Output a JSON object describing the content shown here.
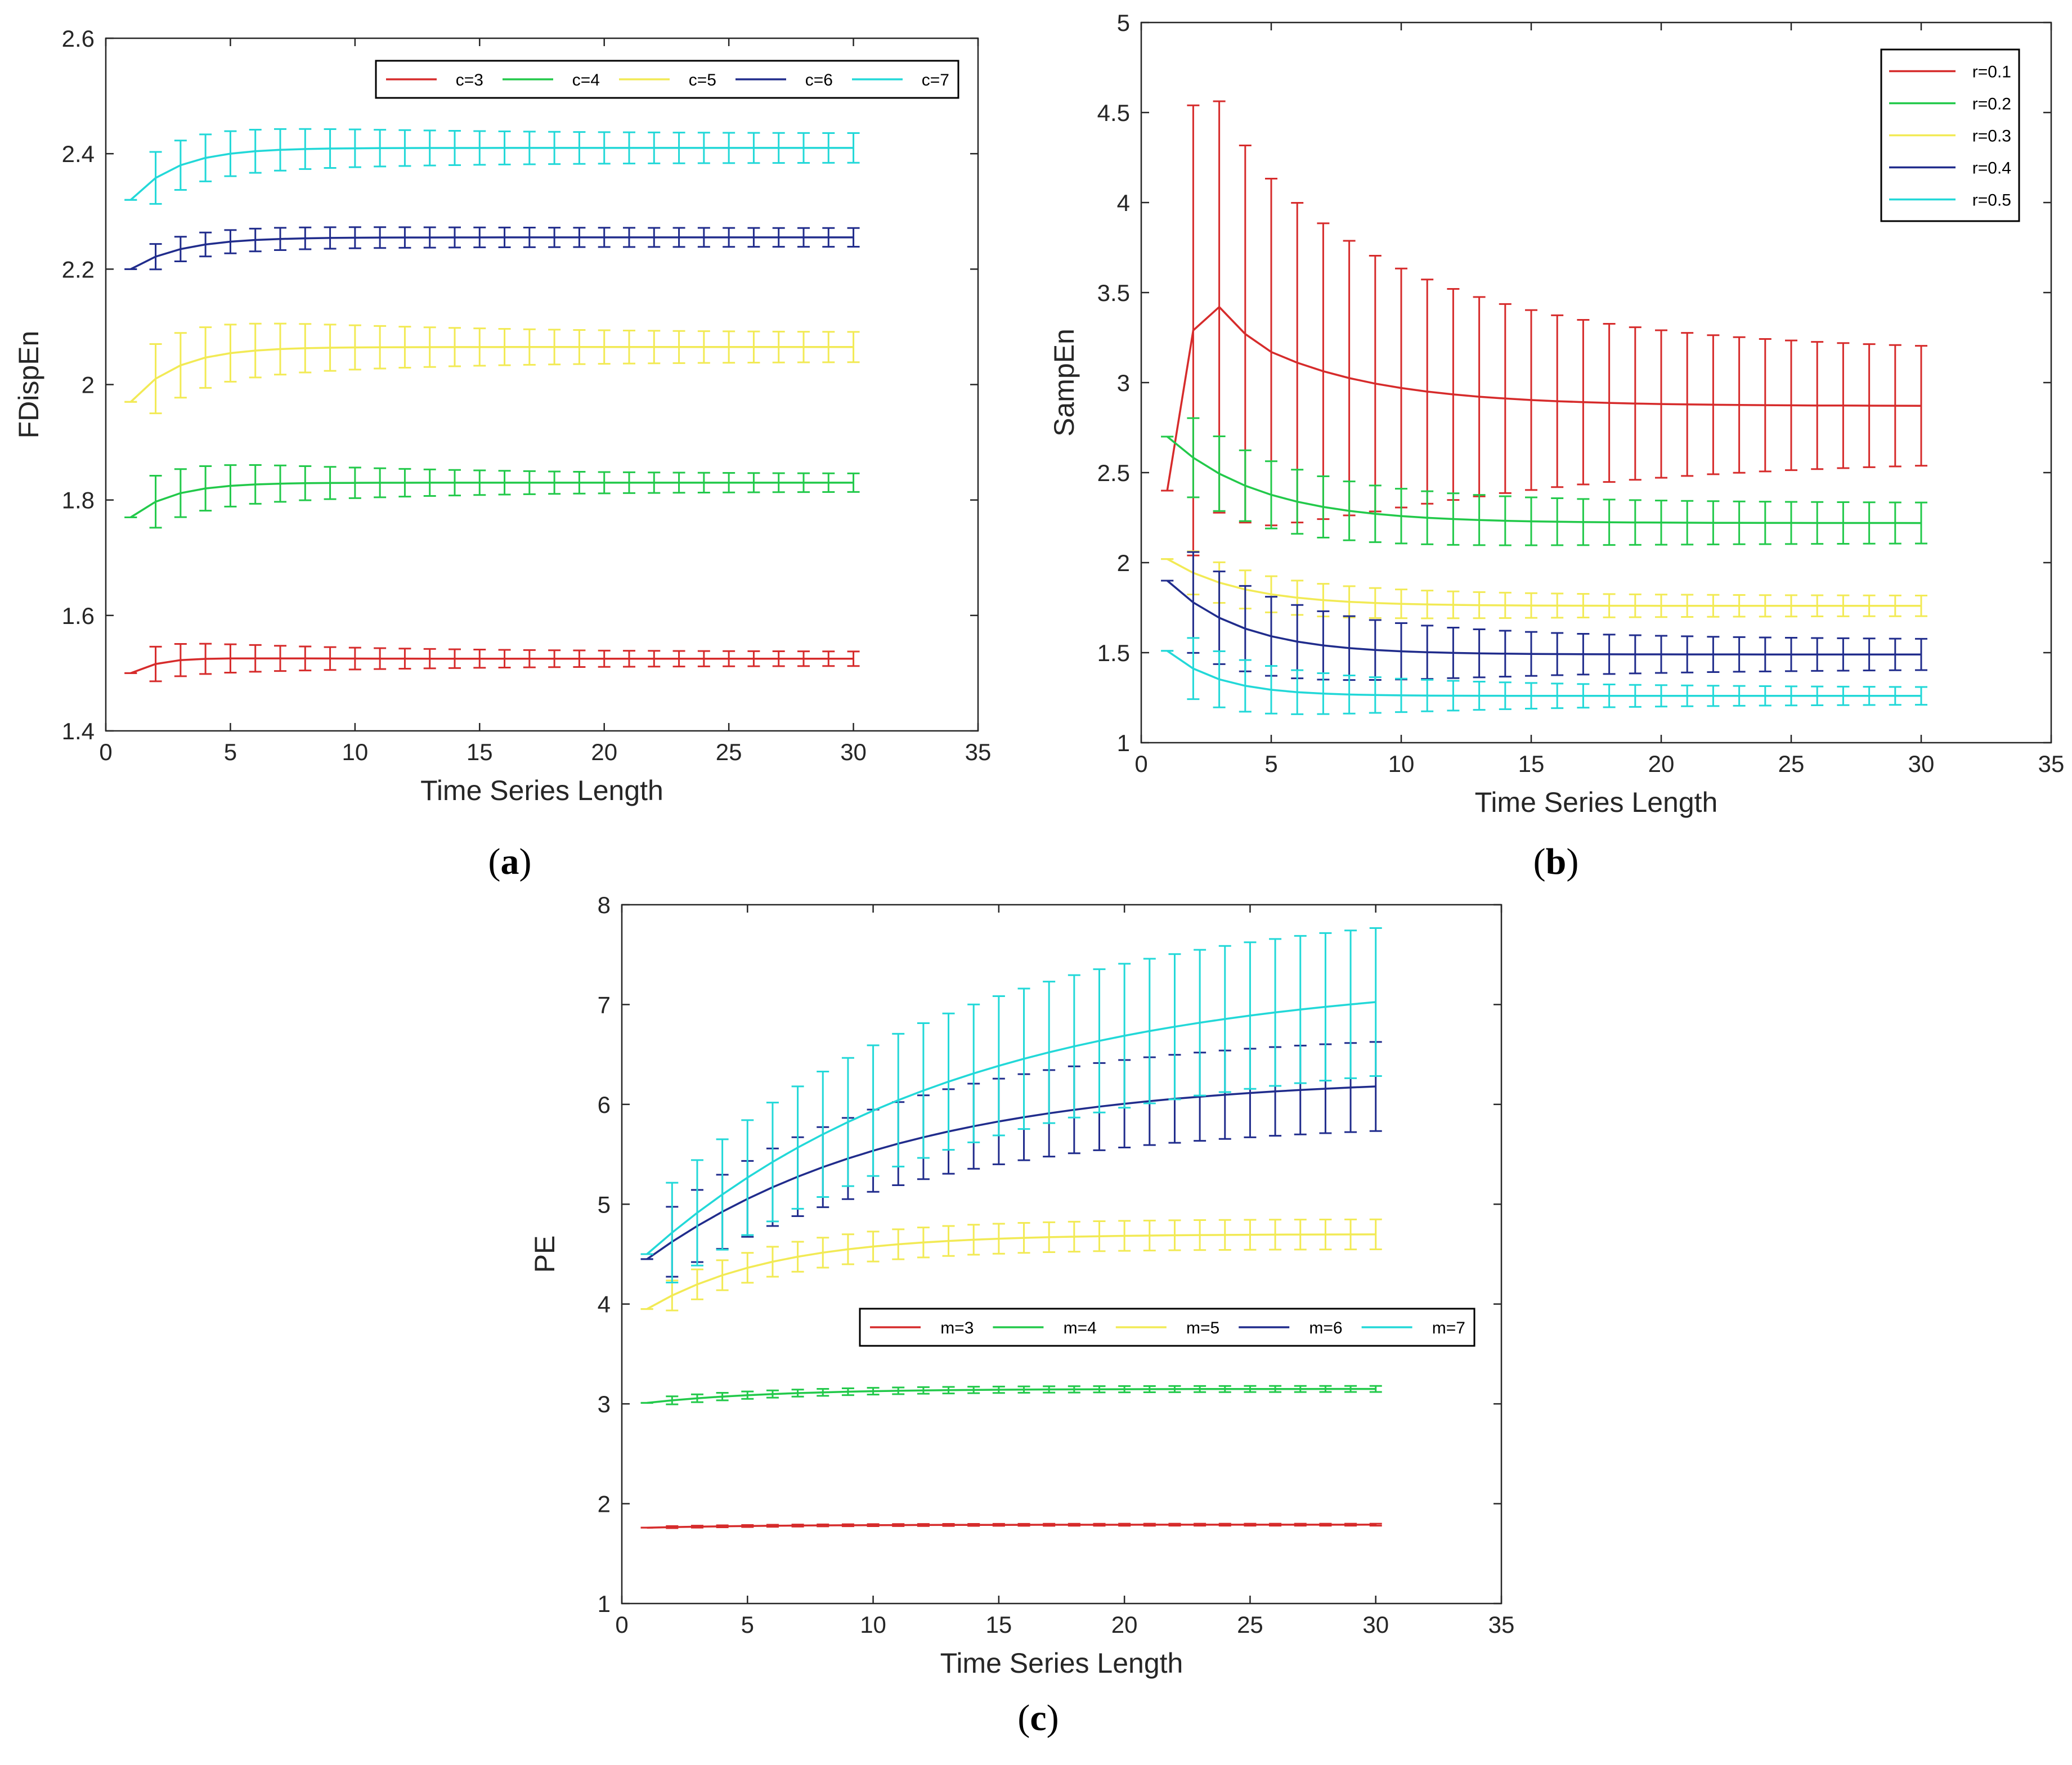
{
  "chart_data": [
    {
      "id": "a",
      "type": "line",
      "caption": "a",
      "xlabel": "Time Series Length",
      "ylabel": "FDispEn",
      "xlim": [
        0,
        35
      ],
      "ylim": [
        1.4,
        2.6
      ],
      "xticks": [
        "0",
        "5",
        "10",
        "15",
        "20",
        "25",
        "30",
        "35"
      ],
      "yticks": [
        "1.4",
        "1.6",
        "1.8",
        "2",
        "2.2",
        "2.4",
        "2.6"
      ],
      "legend_position": "top-right-horizontal",
      "x": [
        1,
        30
      ],
      "series": [
        {
          "name": "c=3",
          "color": "#d62b2b",
          "start": 1.5,
          "end": 1.525,
          "peak": 1.53,
          "rate": 0.8,
          "err_start": 0.0,
          "err_peak": 0.03,
          "err_end": 0.012
        },
        {
          "name": "c=4",
          "color": "#22c94a",
          "start": 1.77,
          "end": 1.83,
          "rate": 0.6,
          "err_start": 0.0,
          "err_peak": 0.045,
          "err_end": 0.015
        },
        {
          "name": "c=5",
          "color": "#f2ea55",
          "start": 1.97,
          "end": 2.065,
          "rate": 0.55,
          "err_start": 0.0,
          "err_peak": 0.06,
          "err_end": 0.025
        },
        {
          "name": "c=6",
          "color": "#202c8c",
          "start": 2.2,
          "end": 2.255,
          "rate": 0.5,
          "err_start": 0.0,
          "err_peak": 0.022,
          "err_end": 0.016
        },
        {
          "name": "c=7",
          "color": "#22d8d8",
          "start": 2.32,
          "end": 2.41,
          "rate": 0.55,
          "err_start": 0.0,
          "err_peak": 0.045,
          "err_end": 0.025
        }
      ]
    },
    {
      "id": "b",
      "type": "line",
      "caption": "b",
      "xlabel": "Time Series Length",
      "ylabel": "SampEn",
      "xlim": [
        0,
        35
      ],
      "ylim": [
        1,
        5
      ],
      "xticks": [
        "0",
        "5",
        "10",
        "15",
        "20",
        "25",
        "30",
        "35"
      ],
      "yticks": [
        "1",
        "1.5",
        "2",
        "2.5",
        "3",
        "3.5",
        "4",
        "4.5",
        "5"
      ],
      "legend_position": "top-right-vertical",
      "x": [
        1,
        30
      ],
      "series": [
        {
          "name": "r=0.1",
          "color": "#d62b2b",
          "custom": [
            2.4,
            3.29,
            3.42,
            3.27,
            3.17
          ],
          "start": 3.17,
          "end": 2.87,
          "rate": 0.22,
          "err_start": 0.0,
          "err_peak": 1.25,
          "err_end": 0.3
        },
        {
          "name": "r=0.2",
          "color": "#22c94a",
          "start": 2.7,
          "end": 2.22,
          "rate": 0.28,
          "err_start": 0.0,
          "err_peak": 0.22,
          "err_end": 0.11
        },
        {
          "name": "r=0.3",
          "color": "#f2ea55",
          "start": 2.02,
          "end": 1.76,
          "rate": 0.35,
          "err_start": 0.0,
          "err_peak": 0.12,
          "err_end": 0.055
        },
        {
          "name": "r=0.4",
          "color": "#202c8c",
          "start": 1.9,
          "end": 1.49,
          "rate": 0.35,
          "err_start": 0.0,
          "err_peak": 0.28,
          "err_end": 0.08
        },
        {
          "name": "r=0.5",
          "color": "#22d8d8",
          "start": 1.51,
          "end": 1.26,
          "rate": 0.5,
          "err_start": 0.0,
          "err_peak": 0.17,
          "err_end": 0.045
        }
      ]
    },
    {
      "id": "c",
      "type": "line",
      "caption": "c",
      "xlabel": "Time Series Length",
      "ylabel": "PE",
      "xlim": [
        0,
        35
      ],
      "ylim": [
        1,
        8
      ],
      "xticks": [
        "0",
        "5",
        "10",
        "15",
        "20",
        "25",
        "30",
        "35"
      ],
      "yticks": [
        "1",
        "2",
        "3",
        "4",
        "5",
        "6",
        "7",
        "8"
      ],
      "legend_position": "middle-right-horizontal",
      "x": [
        1,
        30
      ],
      "series": [
        {
          "name": "m=3",
          "color": "#d62b2b",
          "start": 1.76,
          "end": 1.79,
          "rate": 0.2,
          "err_start": 0.0,
          "err_peak": 0.01,
          "err_end": 0.01
        },
        {
          "name": "m=4",
          "color": "#22c94a",
          "start": 3.01,
          "end": 3.15,
          "rate": 0.2,
          "err_start": 0.0,
          "err_peak": 0.04,
          "err_end": 0.03
        },
        {
          "name": "m=5",
          "color": "#f2ea55",
          "start": 3.95,
          "end": 4.7,
          "rate": 0.2,
          "err_start": 0.0,
          "err_peak": 0.15,
          "err_end": 0.15
        },
        {
          "name": "m=6",
          "color": "#202c8c",
          "start": 4.45,
          "end": 6.28,
          "rate": 0.1,
          "err_start": 0.0,
          "err_peak": 0.35,
          "err_end": 0.45
        },
        {
          "name": "m=7",
          "color": "#22d8d8",
          "start": 4.5,
          "end": 7.3,
          "rate": 0.08,
          "err_start": 0.0,
          "err_peak": 0.5,
          "err_end": 0.75
        }
      ]
    }
  ]
}
